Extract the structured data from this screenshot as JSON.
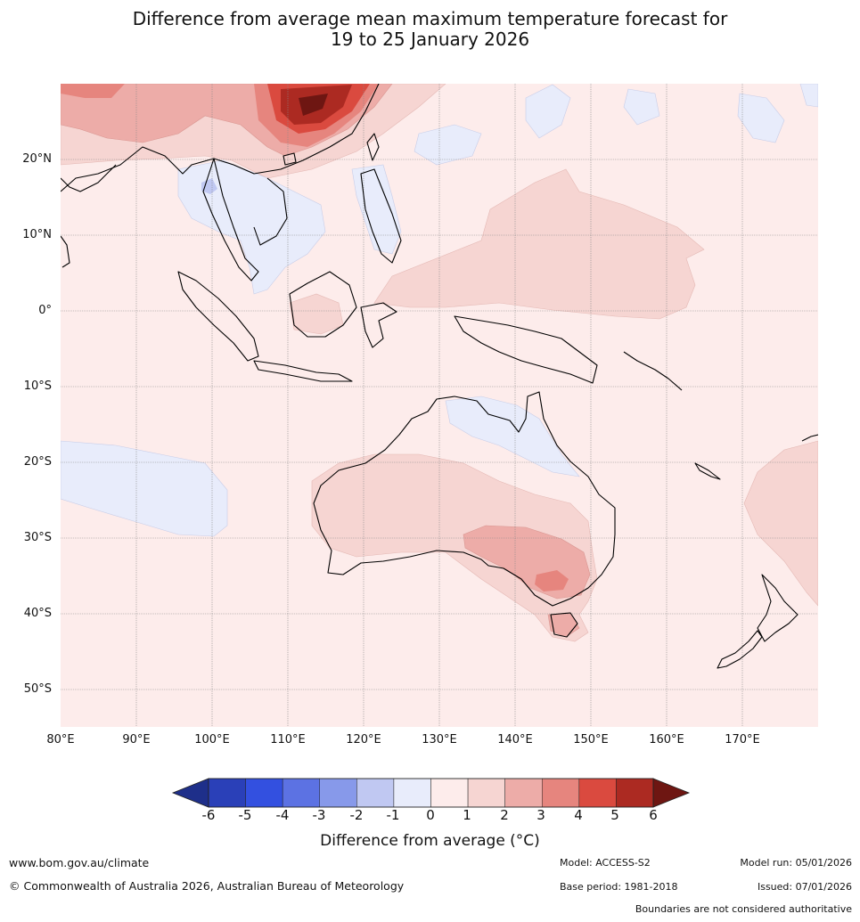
{
  "title_line1": "Difference from average mean maximum temperature forecast for",
  "title_line2": "19 to 25 January 2026",
  "lat_labels": [
    "20°N",
    "10°N",
    "0°",
    "10°S",
    "20°S",
    "30°S",
    "40°S",
    "50°S"
  ],
  "lon_labels": [
    "80°E",
    "90°E",
    "100°E",
    "110°E",
    "120°E",
    "130°E",
    "140°E",
    "150°E",
    "160°E",
    "170°E"
  ],
  "colorbar": {
    "ticks": [
      "-6",
      "-5",
      "-4",
      "-3",
      "-2",
      "-1",
      "0",
      "1",
      "2",
      "3",
      "4",
      "5",
      "6"
    ],
    "colors": [
      "#1e2f8a",
      "#2a40b8",
      "#3350e0",
      "#5c72e3",
      "#8799ea",
      "#c0c8f2",
      "#e8ecfb",
      "#fdeceb",
      "#f6d5d2",
      "#edaca8",
      "#e6857e",
      "#da4a3f",
      "#ac2a22",
      "#6e1612"
    ],
    "label": "Difference from average (°C)"
  },
  "footer": {
    "url": "www.bom.gov.au/climate",
    "copyright": "© Commonwealth of Australia 2026, Australian Bureau of Meteorology",
    "model": "Model: ACCESS-S2",
    "base_period": "Base period: 1981-2018",
    "model_run": "Model run: 05/01/2026",
    "issued": "Issued: 07/01/2026",
    "disclaimer": "Boundaries are not considered authoritative"
  }
}
